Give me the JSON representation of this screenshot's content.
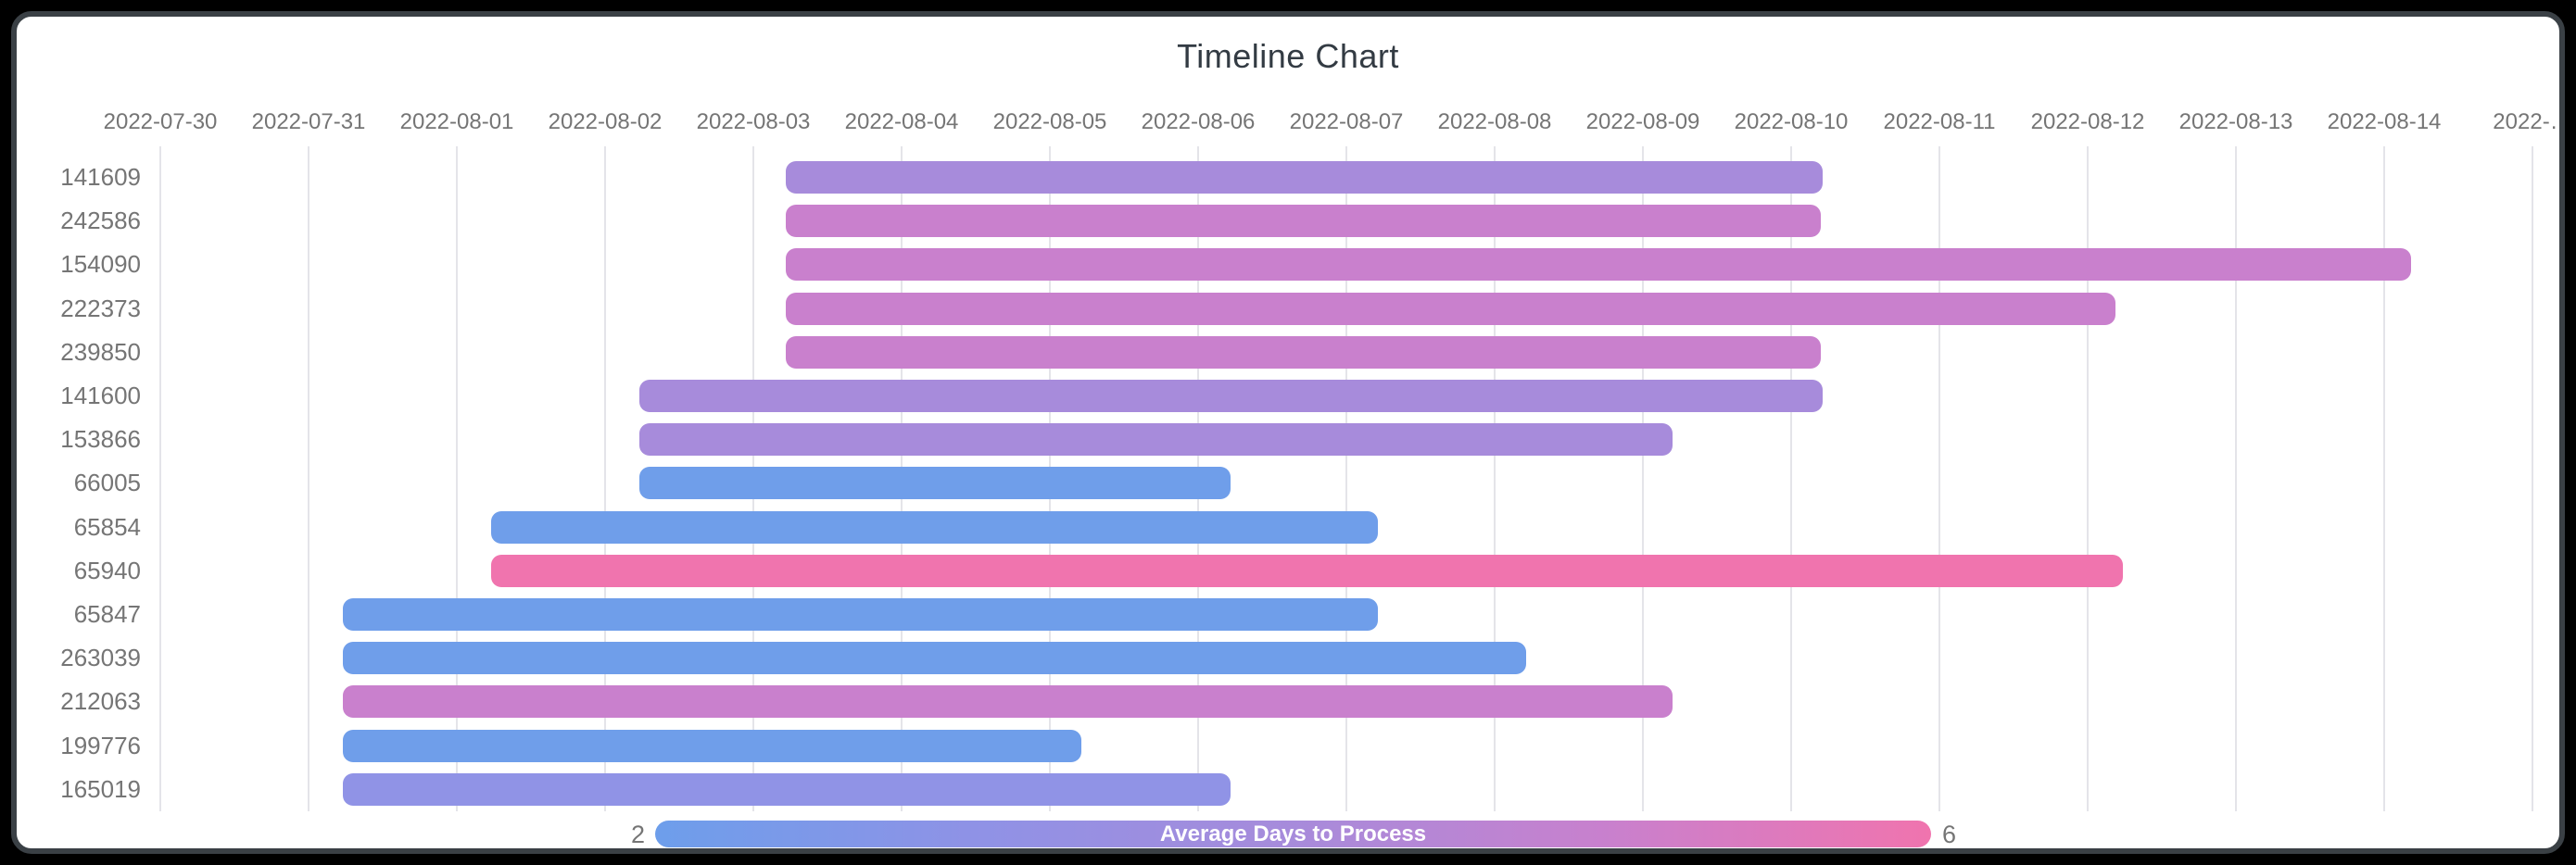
{
  "title": "Timeline Chart",
  "colors": {
    "outer_background": "#000000",
    "card_background": "#ffffff",
    "card_border": "#3a4045",
    "title_text": "#333b43",
    "axis_text": "#757575",
    "gridline": "#e4e4e9",
    "legend_title_text": "#ffffff",
    "palette": {
      "blue": "#6f9eea",
      "periwinkle": "#9093e6",
      "purple": "#a78bdb",
      "orchid": "#c980cd",
      "pink": "#f074ae"
    }
  },
  "x_axis": {
    "tick_labels": [
      "2022-07-30",
      "2022-07-31",
      "2022-08-01",
      "2022-08-02",
      "2022-08-03",
      "2022-08-04",
      "2022-08-05",
      "2022-08-06",
      "2022-08-07",
      "2022-08-08",
      "2022-08-09",
      "2022-08-10",
      "2022-08-11",
      "2022-08-12",
      "2022-08-13",
      "2022-08-14",
      "2022-…"
    ]
  },
  "legend": {
    "title": "Average Days to Process",
    "min_label": "2",
    "max_label": "6",
    "gradient": [
      "#6d9eeb",
      "#8f92e6",
      "#a78bdb",
      "#c980cd",
      "#f074ae"
    ],
    "position": "bottom"
  },
  "chart_data": {
    "type": "timeline",
    "title": "Timeline Chart",
    "xlabel": "",
    "ylabel": "",
    "x_range_days": [
      "2022-07-30",
      "2022-08-15"
    ],
    "axis_day_span": 16,
    "grid": "vertical-only",
    "colorbar_metric": "Average Days to Process",
    "colorbar_range": [
      2,
      6
    ],
    "rows": [
      {
        "label": "141609",
        "start": 4.22,
        "end": 11.21,
        "start_date": "2022-08-03",
        "end_date": "2022-08-10",
        "duration_days": 7,
        "color": "purple",
        "avg_days_to_process_est": 4
      },
      {
        "label": "242586",
        "start": 4.22,
        "end": 11.2,
        "start_date": "2022-08-03",
        "end_date": "2022-08-10",
        "duration_days": 7,
        "color": "orchid",
        "avg_days_to_process_est": 5
      },
      {
        "label": "154090",
        "start": 4.22,
        "end": 15.18,
        "start_date": "2022-08-03",
        "end_date": "2022-08-14",
        "duration_days": 11,
        "color": "orchid",
        "avg_days_to_process_est": 5
      },
      {
        "label": "222373",
        "start": 4.22,
        "end": 13.19,
        "start_date": "2022-08-03",
        "end_date": "2022-08-12",
        "duration_days": 9,
        "color": "orchid",
        "avg_days_to_process_est": 5
      },
      {
        "label": "239850",
        "start": 4.22,
        "end": 11.2,
        "start_date": "2022-08-03",
        "end_date": "2022-08-10",
        "duration_days": 7,
        "color": "orchid",
        "avg_days_to_process_est": 5
      },
      {
        "label": "141600",
        "start": 3.23,
        "end": 11.21,
        "start_date": "2022-08-02",
        "end_date": "2022-08-10",
        "duration_days": 8,
        "color": "purple",
        "avg_days_to_process_est": 4
      },
      {
        "label": "153866",
        "start": 3.23,
        "end": 10.2,
        "start_date": "2022-08-02",
        "end_date": "2022-08-09",
        "duration_days": 7,
        "color": "purple",
        "avg_days_to_process_est": 4
      },
      {
        "label": "66005",
        "start": 3.23,
        "end": 7.22,
        "start_date": "2022-08-02",
        "end_date": "2022-08-06",
        "duration_days": 4,
        "color": "blue",
        "avg_days_to_process_est": 2
      },
      {
        "label": "65854",
        "start": 2.23,
        "end": 8.21,
        "start_date": "2022-08-01",
        "end_date": "2022-08-07",
        "duration_days": 6,
        "color": "blue",
        "avg_days_to_process_est": 2
      },
      {
        "label": "65940",
        "start": 2.23,
        "end": 13.24,
        "start_date": "2022-08-01",
        "end_date": "2022-08-12",
        "duration_days": 11,
        "color": "pink",
        "avg_days_to_process_est": 6
      },
      {
        "label": "65847",
        "start": 1.23,
        "end": 8.21,
        "start_date": "2022-07-31",
        "end_date": "2022-08-07",
        "duration_days": 7,
        "color": "blue",
        "avg_days_to_process_est": 2
      },
      {
        "label": "263039",
        "start": 1.23,
        "end": 9.21,
        "start_date": "2022-07-31",
        "end_date": "2022-08-08",
        "duration_days": 8,
        "color": "blue",
        "avg_days_to_process_est": 2
      },
      {
        "label": "212063",
        "start": 1.23,
        "end": 10.2,
        "start_date": "2022-07-31",
        "end_date": "2022-08-09",
        "duration_days": 9,
        "color": "orchid",
        "avg_days_to_process_est": 5
      },
      {
        "label": "199776",
        "start": 1.23,
        "end": 6.21,
        "start_date": "2022-07-31",
        "end_date": "2022-08-05",
        "duration_days": 5,
        "color": "blue",
        "avg_days_to_process_est": 2
      },
      {
        "label": "165019",
        "start": 1.23,
        "end": 7.22,
        "start_date": "2022-07-31",
        "end_date": "2022-08-06",
        "duration_days": 6,
        "color": "periwinkle",
        "avg_days_to_process_est": 3
      }
    ]
  }
}
